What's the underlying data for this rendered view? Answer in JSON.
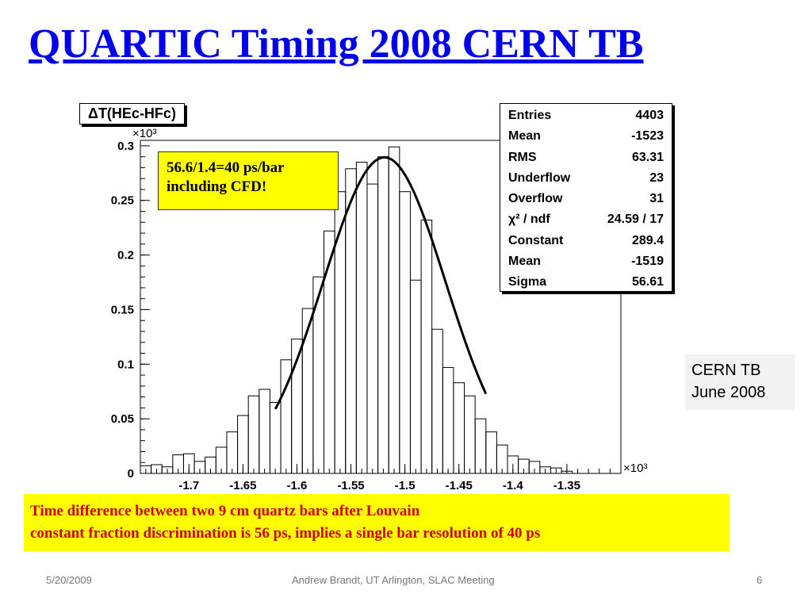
{
  "slide": {
    "title": "QUARTIC Timing 2008 CERN TB",
    "annotation_line1": "56.6/1.4=40 ps/bar",
    "annotation_line2": "including CFD!",
    "cern_line1": "CERN TB",
    "cern_line2": "June 2008",
    "caption_line1": "Time difference between two 9 cm quartz bars after  Louvain",
    "caption_line2": "constant fraction discrimination is 56 ps, implies a single bar resolution of 40 ps",
    "footer_date": "5/20/2009",
    "footer_center": "Andrew Brandt, UT Arlington,  SLAC Meeting",
    "footer_page": "6"
  },
  "stats": [
    {
      "label": "Entries",
      "value": "4403"
    },
    {
      "label": "Mean",
      "value": "-1523"
    },
    {
      "label": "RMS",
      "value": "63.31"
    },
    {
      "label": "Underflow",
      "value": "23"
    },
    {
      "label": "Overflow",
      "value": "31"
    },
    {
      "label": "χ² / ndf",
      "value": "24.59 / 17"
    },
    {
      "label": "Constant",
      "value": "289.4"
    },
    {
      "label": "Mean",
      "value": "-1519"
    },
    {
      "label": "Sigma",
      "value": "56.61"
    }
  ],
  "chart_data": {
    "type": "histogram",
    "title": "ΔT(HEc-HFc)",
    "x_multiplier_label": "×10³",
    "y_multiplier_label": "×10³",
    "xlim": [
      -1.745,
      -1.3
    ],
    "ylim": [
      0,
      0.305
    ],
    "x_ticks": [
      "-1.7",
      "-1.65",
      "-1.6",
      "-1.55",
      "-1.5",
      "-1.45",
      "-1.4",
      "-1.35"
    ],
    "x_tick_values": [
      -1.7,
      -1.65,
      -1.6,
      -1.55,
      -1.5,
      -1.45,
      -1.4,
      -1.35
    ],
    "y_ticks": [
      "0",
      "0.05",
      "0.1",
      "0.15",
      "0.2",
      "0.25",
      "0.3"
    ],
    "y_tick_values": [
      0,
      0.05,
      0.1,
      0.15,
      0.2,
      0.25,
      0.3
    ],
    "bin_start": -1.745,
    "bin_width": 0.01,
    "bin_values": [
      0.007,
      0.008,
      0.006,
      0.017,
      0.018,
      0.011,
      0.015,
      0.024,
      0.038,
      0.053,
      0.071,
      0.077,
      0.065,
      0.104,
      0.123,
      0.151,
      0.18,
      0.222,
      0.258,
      0.279,
      0.285,
      0.265,
      0.29,
      0.299,
      0.258,
      0.177,
      0.232,
      0.132,
      0.097,
      0.083,
      0.071,
      0.05,
      0.038,
      0.026,
      0.016,
      0.013,
      0.011,
      0.006,
      0.005,
      0.002
    ],
    "fit": {
      "function": "gaus",
      "constant": 0.2894,
      "mean": -1.519,
      "sigma": 0.05661,
      "x_range": [
        -1.62,
        -1.425
      ]
    }
  }
}
